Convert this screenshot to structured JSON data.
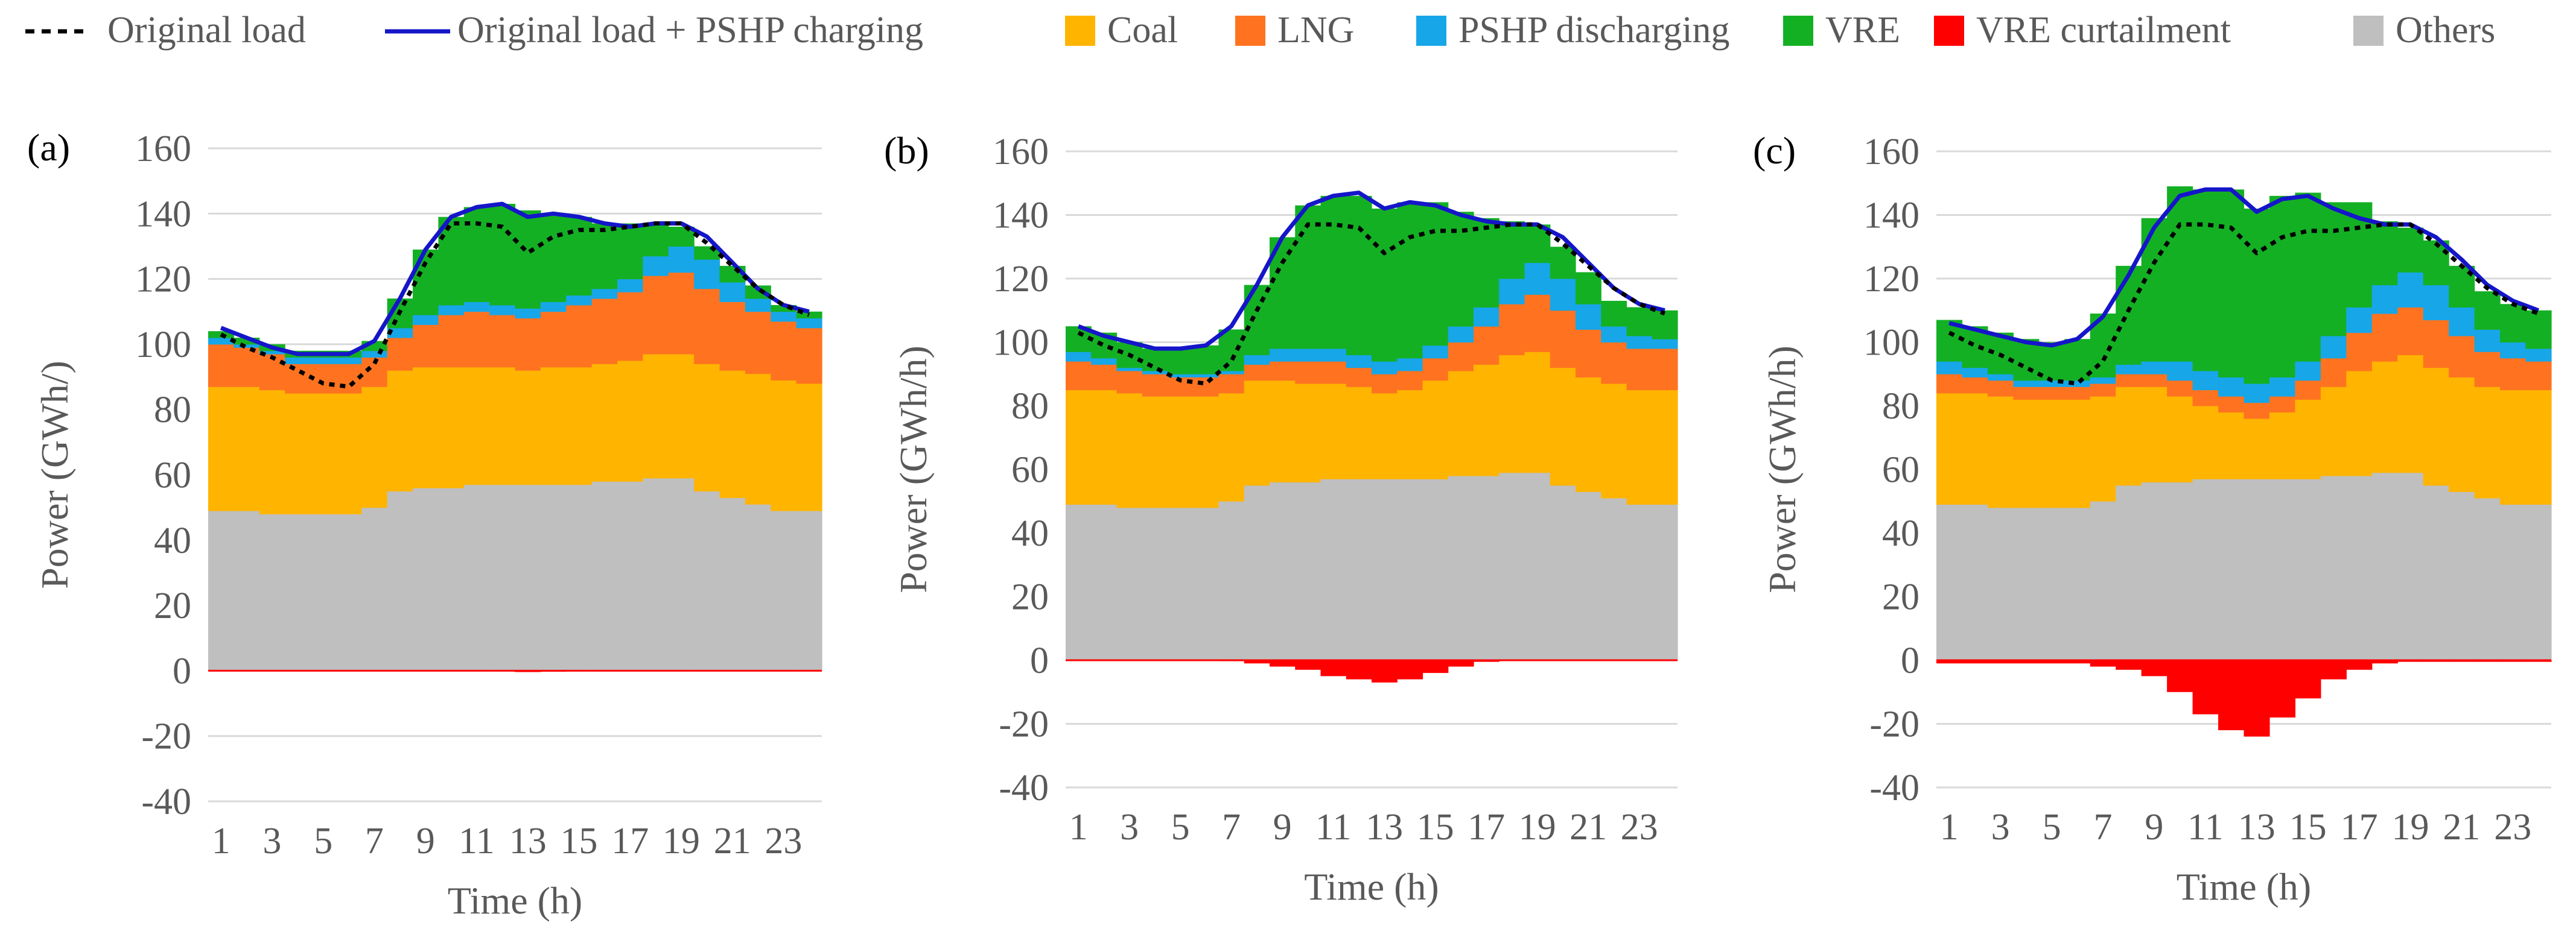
{
  "legend": [
    {
      "label": "Original load",
      "key": "original_load",
      "kind": "dashed-line",
      "color": "#000000"
    },
    {
      "label": "Original load + PSHP charging",
      "key": "load_plus_pshp",
      "kind": "line",
      "color": "#1515C9"
    },
    {
      "label": "Coal",
      "key": "coal",
      "kind": "box",
      "color": "#FFB400"
    },
    {
      "label": "LNG",
      "key": "lng",
      "kind": "box",
      "color": "#FF7320"
    },
    {
      "label": "PSHP discharging",
      "key": "pshp",
      "kind": "box",
      "color": "#17A6E8"
    },
    {
      "label": "VRE",
      "key": "vre",
      "kind": "box",
      "color": "#14B024"
    },
    {
      "label": "VRE curtailment",
      "key": "curtail",
      "kind": "box",
      "color": "#FF0000"
    },
    {
      "label": "Others",
      "key": "others",
      "kind": "box",
      "color": "#BFBFBF"
    }
  ],
  "chart_data": [
    {
      "type": "area",
      "panel_label": "(a)",
      "title": "",
      "xlabel": "Time (h)",
      "ylabel": "Power (GWh/)",
      "ylim": [
        -40,
        160
      ],
      "yticks": [
        "160",
        "140",
        "120",
        "100",
        "80",
        "60",
        "40",
        "20",
        "0",
        "-20",
        "-40"
      ],
      "xticks": [
        "1",
        "3",
        "5",
        "7",
        "9",
        "11",
        "13",
        "15",
        "17",
        "19",
        "21",
        "23"
      ],
      "x": [
        1,
        2,
        3,
        4,
        5,
        6,
        7,
        8,
        9,
        10,
        11,
        12,
        13,
        14,
        15,
        16,
        17,
        18,
        19,
        20,
        21,
        22,
        23,
        24
      ],
      "series": [
        {
          "name": "Others",
          "key": "others",
          "values": [
            49,
            49,
            48,
            48,
            48,
            48,
            50,
            55,
            56,
            56,
            57,
            57,
            57,
            57,
            57,
            58,
            58,
            59,
            59,
            55,
            53,
            51,
            49,
            49
          ]
        },
        {
          "name": "Coal",
          "key": "coal",
          "values": [
            38,
            38,
            38,
            37,
            37,
            37,
            37,
            37,
            37,
            37,
            36,
            36,
            35,
            36,
            36,
            36,
            37,
            38,
            38,
            39,
            39,
            40,
            40,
            39
          ]
        },
        {
          "name": "LNG",
          "key": "lng",
          "values": [
            13,
            12,
            11,
            9,
            9,
            9,
            9,
            10,
            13,
            16,
            17,
            16,
            16,
            17,
            19,
            20,
            21,
            24,
            25,
            23,
            21,
            19,
            18,
            17
          ]
        },
        {
          "name": "PSHP discharging",
          "key": "pshp",
          "values": [
            2,
            1,
            1,
            2,
            2,
            2,
            2,
            3,
            3,
            3,
            3,
            3,
            3,
            3,
            3,
            3,
            4,
            6,
            8,
            9,
            6,
            4,
            3,
            3
          ]
        },
        {
          "name": "VRE",
          "key": "vre",
          "values": [
            2,
            2,
            2,
            2,
            2,
            2,
            3,
            9,
            20,
            27,
            29,
            31,
            30,
            27,
            24,
            20,
            17,
            10,
            6,
            4,
            5,
            4,
            2,
            2
          ]
        },
        {
          "name": "VRE curtailment",
          "key": "curtail",
          "values": [
            0,
            0,
            0,
            0,
            0,
            0,
            0,
            0,
            0,
            0,
            0,
            0,
            -0.4,
            -0.3,
            0,
            0,
            0,
            0,
            0,
            0,
            0,
            0,
            0,
            0
          ]
        },
        {
          "name": "Original load",
          "key": "original_load",
          "values": [
            103,
            99,
            96,
            92,
            88,
            87,
            94,
            110,
            125,
            137,
            137,
            136,
            128,
            133,
            135,
            135,
            136,
            137,
            137,
            131,
            124,
            117,
            112,
            109
          ]
        },
        {
          "name": "Original load + PSHP charging",
          "key": "load_plus_pshp",
          "values": [
            105,
            102,
            99,
            97,
            97,
            97,
            101,
            114,
            129,
            139,
            142,
            143,
            139,
            140,
            139,
            137,
            136,
            137,
            137,
            133,
            125,
            117,
            112,
            110
          ]
        }
      ]
    },
    {
      "type": "area",
      "panel_label": "(b)",
      "title": "",
      "xlabel": "Time (h)",
      "ylabel": "Power (GWh/h)",
      "ylim": [
        -40,
        160
      ],
      "yticks": [
        "160",
        "140",
        "120",
        "100",
        "80",
        "60",
        "40",
        "20",
        "0",
        "-20",
        "-40"
      ],
      "xticks": [
        "1",
        "3",
        "5",
        "7",
        "9",
        "11",
        "13",
        "15",
        "17",
        "19",
        "21",
        "23"
      ],
      "x": [
        1,
        2,
        3,
        4,
        5,
        6,
        7,
        8,
        9,
        10,
        11,
        12,
        13,
        14,
        15,
        16,
        17,
        18,
        19,
        20,
        21,
        22,
        23,
        24
      ],
      "series": [
        {
          "name": "Others",
          "key": "others",
          "values": [
            49,
            49,
            48,
            48,
            48,
            48,
            50,
            55,
            56,
            56,
            57,
            57,
            57,
            57,
            57,
            58,
            58,
            59,
            59,
            55,
            53,
            51,
            49,
            49
          ]
        },
        {
          "name": "Coal",
          "key": "coal",
          "values": [
            36,
            36,
            36,
            35,
            35,
            35,
            34,
            33,
            32,
            31,
            30,
            29,
            27,
            28,
            31,
            33,
            35,
            37,
            38,
            37,
            36,
            36,
            36,
            36
          ]
        },
        {
          "name": "LNG",
          "key": "lng",
          "values": [
            9,
            8,
            7,
            7,
            6,
            6,
            6,
            5,
            6,
            7,
            7,
            6,
            6,
            6,
            7,
            9,
            12,
            16,
            18,
            18,
            15,
            13,
            13,
            13
          ]
        },
        {
          "name": "PSHP discharging",
          "key": "pshp",
          "values": [
            3,
            2,
            1,
            1,
            1,
            1,
            1,
            3,
            4,
            4,
            4,
            4,
            4,
            4,
            4,
            5,
            6,
            8,
            10,
            10,
            8,
            5,
            4,
            3
          ]
        },
        {
          "name": "VRE",
          "key": "vre",
          "values": [
            8,
            8,
            8,
            7,
            8,
            9,
            13,
            22,
            35,
            45,
            48,
            50,
            48,
            49,
            45,
            36,
            28,
            18,
            12,
            10,
            10,
            8,
            9,
            9
          ]
        },
        {
          "name": "VRE curtailment",
          "key": "curtail",
          "values": [
            0,
            0,
            0,
            0,
            0,
            0,
            -0.3,
            -1,
            -2,
            -3,
            -5,
            -6,
            -7,
            -6,
            -4,
            -2,
            -0.5,
            0,
            0,
            0,
            0,
            0,
            0,
            0
          ]
        },
        {
          "name": "Original load",
          "key": "original_load",
          "values": [
            103,
            99,
            96,
            92,
            88,
            87,
            94,
            110,
            125,
            137,
            137,
            136,
            128,
            133,
            135,
            135,
            136,
            137,
            137,
            131,
            124,
            117,
            112,
            109
          ]
        },
        {
          "name": "Original load + PSHP charging",
          "key": "load_plus_pshp",
          "values": [
            105,
            102,
            100,
            98,
            98,
            99,
            105,
            118,
            133,
            143,
            146,
            147,
            142,
            144,
            143,
            140,
            138,
            137,
            137,
            133,
            125,
            117,
            112,
            110
          ]
        }
      ]
    },
    {
      "type": "area",
      "panel_label": "(c)",
      "title": "",
      "xlabel": "Time (h)",
      "ylabel": "Power (GWh/h)",
      "ylim": [
        -40,
        160
      ],
      "yticks": [
        "160",
        "140",
        "120",
        "100",
        "80",
        "60",
        "40",
        "20",
        "0",
        "-20",
        "-40"
      ],
      "xticks": [
        "1",
        "3",
        "5",
        "7",
        "9",
        "11",
        "13",
        "15",
        "17",
        "19",
        "21",
        "23"
      ],
      "x": [
        1,
        2,
        3,
        4,
        5,
        6,
        7,
        8,
        9,
        10,
        11,
        12,
        13,
        14,
        15,
        16,
        17,
        18,
        19,
        20,
        21,
        22,
        23,
        24
      ],
      "series": [
        {
          "name": "Others",
          "key": "others",
          "values": [
            49,
            49,
            48,
            48,
            48,
            48,
            50,
            55,
            56,
            56,
            57,
            57,
            57,
            57,
            57,
            58,
            58,
            59,
            59,
            55,
            53,
            51,
            49,
            49
          ]
        },
        {
          "name": "Coal",
          "key": "coal",
          "values": [
            35,
            35,
            35,
            34,
            34,
            34,
            33,
            31,
            30,
            27,
            23,
            21,
            19,
            21,
            25,
            28,
            33,
            35,
            37,
            37,
            36,
            35,
            36,
            36
          ]
        },
        {
          "name": "LNG",
          "key": "lng",
          "values": [
            6,
            5,
            5,
            4,
            4,
            4,
            4,
            4,
            4,
            5,
            5,
            5,
            5,
            5,
            6,
            9,
            12,
            15,
            15,
            15,
            13,
            11,
            10,
            9
          ]
        },
        {
          "name": "PSHP discharging",
          "key": "pshp",
          "values": [
            4,
            3,
            2,
            2,
            2,
            2,
            2,
            3,
            4,
            6,
            6,
            6,
            6,
            6,
            6,
            7,
            8,
            9,
            11,
            11,
            9,
            7,
            5,
            4
          ]
        },
        {
          "name": "VRE",
          "key": "vre",
          "values": [
            13,
            13,
            13,
            13,
            12,
            13,
            20,
            31,
            45,
            55,
            57,
            59,
            55,
            57,
            53,
            42,
            33,
            20,
            14,
            14,
            13,
            12,
            12,
            12
          ]
        },
        {
          "name": "VRE curtailment",
          "key": "curtail",
          "values": [
            -1,
            -1,
            -1,
            -1,
            -1,
            -1,
            -2,
            -3,
            -5,
            -10,
            -17,
            -22,
            -24,
            -18,
            -12,
            -6,
            -3,
            -1,
            -0.5,
            -0.5,
            -0.5,
            -0.5,
            -0.5,
            -0.5
          ]
        },
        {
          "name": "Original load",
          "key": "original_load",
          "values": [
            103,
            99,
            96,
            92,
            88,
            87,
            94,
            110,
            125,
            137,
            137,
            136,
            128,
            133,
            135,
            135,
            136,
            137,
            137,
            131,
            124,
            117,
            112,
            109
          ]
        },
        {
          "name": "Original load + PSHP charging",
          "key": "load_plus_pshp",
          "values": [
            106,
            104,
            102,
            100,
            99,
            101,
            108,
            121,
            136,
            146,
            148,
            148,
            141,
            145,
            146,
            142,
            139,
            137,
            137,
            133,
            126,
            118,
            113,
            110
          ]
        }
      ]
    }
  ]
}
